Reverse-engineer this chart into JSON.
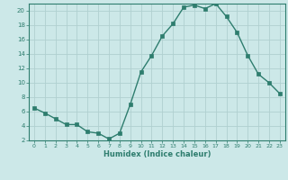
{
  "x": [
    0,
    1,
    2,
    3,
    4,
    5,
    6,
    7,
    8,
    9,
    10,
    11,
    12,
    13,
    14,
    15,
    16,
    17,
    18,
    19,
    20,
    21,
    22,
    23
  ],
  "y": [
    6.5,
    5.8,
    5.0,
    4.2,
    4.2,
    3.2,
    3.0,
    2.2,
    3.0,
    7.0,
    11.5,
    13.8,
    16.5,
    18.2,
    20.5,
    20.8,
    20.3,
    21.0,
    19.2,
    17.0,
    13.8,
    11.2,
    10.0,
    8.5
  ],
  "xlabel": "Humidex (Indice chaleur)",
  "ylim": [
    2,
    21
  ],
  "xlim": [
    -0.5,
    23.5
  ],
  "yticks": [
    2,
    4,
    6,
    8,
    10,
    12,
    14,
    16,
    18,
    20
  ],
  "xticks": [
    0,
    1,
    2,
    3,
    4,
    5,
    6,
    7,
    8,
    9,
    10,
    11,
    12,
    13,
    14,
    15,
    16,
    17,
    18,
    19,
    20,
    21,
    22,
    23
  ],
  "line_color": "#2e7d6e",
  "marker_color": "#2e7d6e",
  "bg_color": "#cce8e8",
  "grid_color": "#b0d0d0",
  "axis_color": "#2e7d6e",
  "tick_color": "#2e7d6e",
  "label_color": "#2e7d6e"
}
